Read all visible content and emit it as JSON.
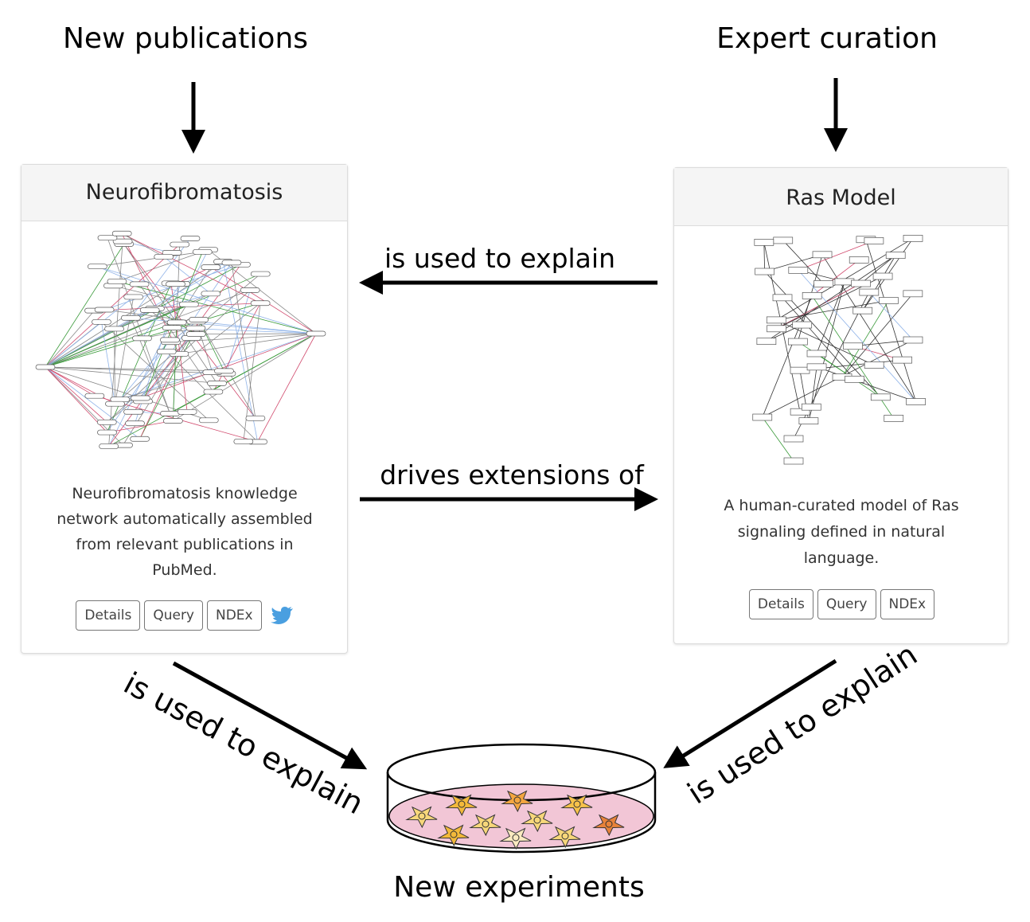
{
  "sources": {
    "left": "New publications",
    "right": "Expert curation"
  },
  "cards": [
    {
      "title": "Neurofibromatosis",
      "description": "Neurofibromatosis knowledge network automatically assembled from relevant publications in PubMed.",
      "buttons": [
        "Details",
        "Query",
        "NDEx"
      ]
    },
    {
      "title": "Ras Model",
      "description": "A human-curated model of Ras signaling defined in natural language.",
      "buttons": [
        "Details",
        "Query",
        "NDEx"
      ]
    }
  ],
  "edges": {
    "ras_to_nf": "is used to explain",
    "nf_to_ras": "drives extensions of",
    "nf_to_experiments": "is used to explain",
    "ras_to_experiments": "is used to explain"
  },
  "target": "New experiments"
}
